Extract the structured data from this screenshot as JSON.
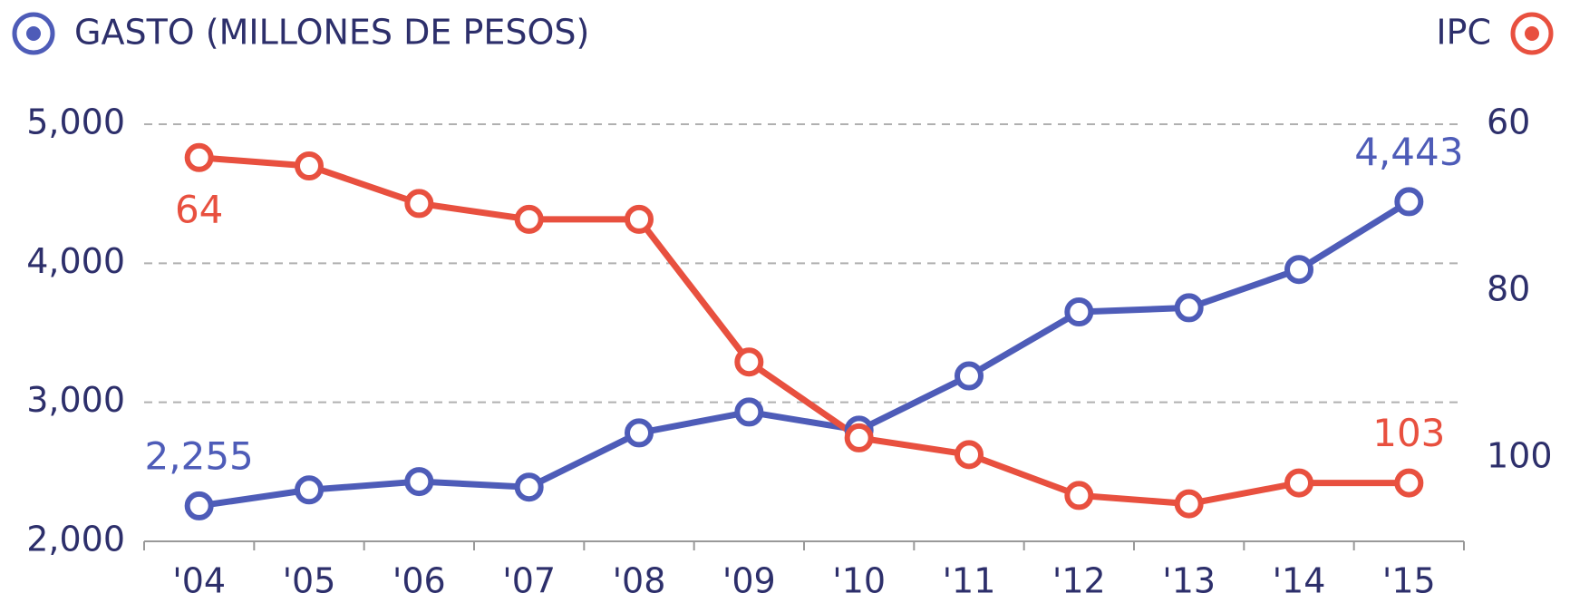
{
  "chart_data": {
    "type": "line",
    "categories": [
      "'04",
      "'05",
      "'06",
      "'07",
      "'08",
      "'09",
      "'10",
      "'11",
      "'12",
      "'13",
      "'14",
      "'15"
    ],
    "series": [
      {
        "name": "GASTO (MILLONES DE PESOS)",
        "color": "#4e5cb8",
        "axis": "y",
        "values": [
          2255,
          2370,
          2430,
          2390,
          2780,
          2930,
          2800,
          3190,
          3650,
          3680,
          3955,
          4443
        ],
        "value_labels": [
          "2,255",
          null,
          null,
          null,
          null,
          null,
          null,
          null,
          null,
          null,
          null,
          "4,443"
        ]
      },
      {
        "name": "IPC",
        "color": "#e8503f",
        "axis": "y2",
        "values": [
          64,
          65,
          69.5,
          71.4,
          71.4,
          88.5,
          97.6,
          99.6,
          104.5,
          105.5,
          103,
          103
        ],
        "value_labels": [
          "64",
          null,
          null,
          null,
          null,
          null,
          null,
          null,
          null,
          null,
          null,
          "103"
        ]
      }
    ],
    "ylim": [
      2000,
      5000
    ],
    "yticks": [
      {
        "value": 2000,
        "label": "2,000"
      },
      {
        "value": 3000,
        "label": "3,000"
      },
      {
        "value": 4000,
        "label": "4,000"
      },
      {
        "value": 5000,
        "label": "5,000"
      }
    ],
    "y2lim": [
      60,
      110
    ],
    "y2_reversed": true,
    "y2ticks": [
      60,
      80,
      100
    ],
    "grid": true
  }
}
